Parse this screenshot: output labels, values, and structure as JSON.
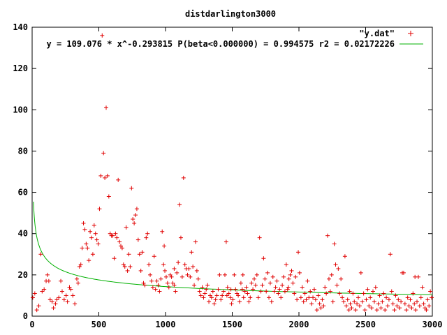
{
  "chart_data": {
    "type": "scatter",
    "title": "distdarlington3000",
    "xlabel": "",
    "ylabel": "",
    "xlim": [
      0,
      3000
    ],
    "ylim": [
      0,
      140
    ],
    "x_ticks": [
      0,
      500,
      1000,
      1500,
      2000,
      2500,
      3000
    ],
    "y_ticks": [
      0,
      20,
      40,
      60,
      80,
      100,
      120,
      140
    ],
    "grid": false,
    "legend_position": "top-right",
    "colors": {
      "scatter": "#e00000",
      "fit": "#00b000",
      "axis": "#000000"
    },
    "series": [
      {
        "name": "\"y.dat\"",
        "kind": "scatter",
        "marker": "+",
        "points": [
          [
            5,
            9
          ],
          [
            20,
            11
          ],
          [
            35,
            3
          ],
          [
            50,
            5
          ],
          [
            65,
            30
          ],
          [
            75,
            12
          ],
          [
            90,
            13
          ],
          [
            105,
            17
          ],
          [
            115,
            20
          ],
          [
            125,
            17
          ],
          [
            135,
            8
          ],
          [
            150,
            7
          ],
          [
            160,
            4
          ],
          [
            175,
            6
          ],
          [
            185,
            8
          ],
          [
            200,
            9
          ],
          [
            215,
            17
          ],
          [
            225,
            12
          ],
          [
            240,
            8
          ],
          [
            255,
            10
          ],
          [
            265,
            7
          ],
          [
            280,
            14
          ],
          [
            290,
            13
          ],
          [
            305,
            10
          ],
          [
            320,
            6
          ],
          [
            335,
            18
          ],
          [
            345,
            16
          ],
          [
            355,
            24
          ],
          [
            365,
            25
          ],
          [
            375,
            33
          ],
          [
            385,
            45
          ],
          [
            395,
            42
          ],
          [
            405,
            35
          ],
          [
            415,
            33
          ],
          [
            425,
            27
          ],
          [
            435,
            41
          ],
          [
            445,
            38
          ],
          [
            455,
            30
          ],
          [
            465,
            44
          ],
          [
            475,
            40
          ],
          [
            485,
            37
          ],
          [
            495,
            35
          ],
          [
            505,
            52
          ],
          [
            515,
            68
          ],
          [
            525,
            136
          ],
          [
            535,
            79
          ],
          [
            545,
            67
          ],
          [
            555,
            101
          ],
          [
            565,
            68
          ],
          [
            575,
            58
          ],
          [
            585,
            40
          ],
          [
            595,
            39
          ],
          [
            605,
            39
          ],
          [
            615,
            28
          ],
          [
            625,
            40
          ],
          [
            635,
            38
          ],
          [
            645,
            66
          ],
          [
            655,
            36
          ],
          [
            665,
            34
          ],
          [
            675,
            33
          ],
          [
            685,
            25
          ],
          [
            695,
            24
          ],
          [
            705,
            43
          ],
          [
            715,
            22
          ],
          [
            725,
            30
          ],
          [
            735,
            24
          ],
          [
            745,
            62
          ],
          [
            755,
            47
          ],
          [
            765,
            45
          ],
          [
            775,
            49
          ],
          [
            785,
            52
          ],
          [
            795,
            37
          ],
          [
            805,
            30
          ],
          [
            815,
            22
          ],
          [
            825,
            31
          ],
          [
            835,
            16
          ],
          [
            845,
            15
          ],
          [
            855,
            38
          ],
          [
            865,
            40
          ],
          [
            875,
            25
          ],
          [
            885,
            20
          ],
          [
            895,
            17
          ],
          [
            905,
            14
          ],
          [
            915,
            29
          ],
          [
            925,
            13
          ],
          [
            935,
            17
          ],
          [
            945,
            15
          ],
          [
            955,
            12
          ],
          [
            965,
            18
          ],
          [
            975,
            41
          ],
          [
            985,
            25
          ],
          [
            995,
            22
          ],
          [
            1005,
            19
          ],
          [
            1015,
            16
          ],
          [
            1025,
            14
          ],
          [
            1035,
            20
          ],
          [
            1045,
            19
          ],
          [
            1055,
            16
          ],
          [
            1065,
            23
          ],
          [
            1075,
            12
          ],
          [
            1085,
            21
          ],
          [
            1095,
            26
          ],
          [
            1105,
            54
          ],
          [
            1115,
            38
          ],
          [
            1125,
            19
          ],
          [
            1135,
            67
          ],
          [
            1145,
            25
          ],
          [
            1155,
            23
          ],
          [
            1165,
            20
          ],
          [
            1175,
            23
          ],
          [
            1185,
            19
          ],
          [
            1195,
            31
          ],
          [
            1205,
            24
          ],
          [
            1215,
            15
          ],
          [
            1225,
            36
          ],
          [
            1235,
            22
          ],
          [
            1245,
            18
          ],
          [
            1255,
            12
          ],
          [
            1265,
            10
          ],
          [
            1275,
            14
          ],
          [
            1285,
            9
          ],
          [
            1295,
            11
          ],
          [
            1305,
            13
          ],
          [
            1315,
            15
          ],
          [
            1325,
            7
          ],
          [
            1335,
            10
          ],
          [
            1345,
            9
          ],
          [
            1355,
            12
          ],
          [
            1365,
            6
          ],
          [
            1375,
            8
          ],
          [
            1385,
            10
          ],
          [
            1395,
            13
          ],
          [
            1405,
            20
          ],
          [
            1415,
            8
          ],
          [
            1425,
            10
          ],
          [
            1435,
            12
          ],
          [
            1445,
            20
          ],
          [
            1455,
            36
          ],
          [
            1465,
            14
          ],
          [
            1475,
            11
          ],
          [
            1485,
            9
          ],
          [
            1495,
            6
          ],
          [
            1505,
            8
          ],
          [
            1515,
            20
          ],
          [
            1525,
            13
          ],
          [
            1535,
            11
          ],
          [
            1545,
            10
          ],
          [
            1555,
            7
          ],
          [
            1565,
            16
          ],
          [
            1575,
            13
          ],
          [
            1585,
            9
          ],
          [
            1595,
            12
          ],
          [
            1605,
            14
          ],
          [
            1615,
            11
          ],
          [
            1625,
            7
          ],
          [
            1635,
            9
          ],
          [
            1645,
            16
          ],
          [
            1655,
            13
          ],
          [
            1665,
            18
          ],
          [
            1675,
            15
          ],
          [
            1685,
            20
          ],
          [
            1695,
            9
          ],
          [
            1705,
            38
          ],
          [
            1715,
            12
          ],
          [
            1725,
            15
          ],
          [
            1735,
            28
          ],
          [
            1745,
            18
          ],
          [
            1755,
            12
          ],
          [
            1765,
            21
          ],
          [
            1775,
            9
          ],
          [
            1785,
            16
          ],
          [
            1795,
            7
          ],
          [
            1805,
            19
          ],
          [
            1815,
            12
          ],
          [
            1825,
            14
          ],
          [
            1835,
            17
          ],
          [
            1845,
            11
          ],
          [
            1855,
            13
          ],
          [
            1865,
            9
          ],
          [
            1875,
            15
          ],
          [
            1885,
            19
          ],
          [
            1895,
            12
          ],
          [
            1905,
            25
          ],
          [
            1915,
            13
          ],
          [
            1925,
            18
          ],
          [
            1935,
            20
          ],
          [
            1945,
            22
          ],
          [
            1955,
            16
          ],
          [
            1965,
            11
          ],
          [
            1975,
            19
          ],
          [
            1985,
            8
          ],
          [
            1995,
            31
          ],
          [
            2005,
            21
          ],
          [
            2015,
            9
          ],
          [
            2025,
            14
          ],
          [
            2035,
            7
          ],
          [
            2045,
            11
          ],
          [
            2055,
            8
          ],
          [
            2065,
            17
          ],
          [
            2075,
            9
          ],
          [
            2085,
            12
          ],
          [
            2095,
            6
          ],
          [
            2105,
            9
          ],
          [
            2115,
            13
          ],
          [
            2125,
            8
          ],
          [
            2135,
            3
          ],
          [
            2145,
            10
          ],
          [
            2155,
            6
          ],
          [
            2165,
            4
          ],
          [
            2175,
            8
          ],
          [
            2185,
            5
          ],
          [
            2195,
            14
          ],
          [
            2205,
            11
          ],
          [
            2215,
            39
          ],
          [
            2225,
            18
          ],
          [
            2235,
            12
          ],
          [
            2245,
            20
          ],
          [
            2255,
            7
          ],
          [
            2265,
            35
          ],
          [
            2275,
            25
          ],
          [
            2285,
            15
          ],
          [
            2295,
            23
          ],
          [
            2305,
            11
          ],
          [
            2315,
            18
          ],
          [
            2325,
            9
          ],
          [
            2335,
            7
          ],
          [
            2345,
            29
          ],
          [
            2355,
            5
          ],
          [
            2365,
            8
          ],
          [
            2375,
            3
          ],
          [
            2385,
            6
          ],
          [
            2395,
            4
          ],
          [
            2405,
            11
          ],
          [
            2415,
            7
          ],
          [
            2425,
            3
          ],
          [
            2435,
            6
          ],
          [
            2445,
            9
          ],
          [
            2455,
            5
          ],
          [
            2465,
            21
          ],
          [
            2475,
            7
          ],
          [
            2485,
            11
          ],
          [
            2495,
            3
          ],
          [
            2505,
            8
          ],
          [
            2515,
            13
          ],
          [
            2525,
            5
          ],
          [
            2535,
            9
          ],
          [
            2545,
            4
          ],
          [
            2555,
            12
          ],
          [
            2565,
            7
          ],
          [
            2575,
            14
          ],
          [
            2585,
            3
          ],
          [
            2595,
            6
          ],
          [
            2605,
            10
          ],
          [
            2615,
            4
          ],
          [
            2625,
            7
          ],
          [
            2635,
            11
          ],
          [
            2645,
            3
          ],
          [
            2655,
            9
          ],
          [
            2665,
            5
          ],
          [
            2675,
            8
          ],
          [
            2685,
            30
          ],
          [
            2695,
            12
          ],
          [
            2705,
            6
          ],
          [
            2715,
            3
          ],
          [
            2725,
            10
          ],
          [
            2735,
            5
          ],
          [
            2745,
            8
          ],
          [
            2755,
            4
          ],
          [
            2765,
            7
          ],
          [
            2775,
            21
          ],
          [
            2785,
            21
          ],
          [
            2795,
            6
          ],
          [
            2805,
            3
          ],
          [
            2815,
            9
          ],
          [
            2825,
            5
          ],
          [
            2835,
            8
          ],
          [
            2845,
            4
          ],
          [
            2855,
            11
          ],
          [
            2865,
            6
          ],
          [
            2875,
            3
          ],
          [
            2885,
            7
          ],
          [
            2895,
            19
          ],
          [
            2905,
            5
          ],
          [
            2915,
            9
          ],
          [
            2925,
            14
          ],
          [
            2935,
            6
          ],
          [
            2945,
            4
          ],
          [
            2955,
            3
          ],
          [
            2965,
            8
          ],
          [
            2975,
            5
          ],
          [
            2985,
            12
          ],
          [
            2995,
            9
          ],
          [
            2870,
            19
          ],
          [
            2380,
            12
          ],
          [
            1460,
            10
          ],
          [
            1490,
            13
          ],
          [
            1920,
            14
          ],
          [
            1580,
            20
          ],
          [
            990,
            34
          ],
          [
            1065,
            15
          ]
        ]
      },
      {
        "name": "y = 109.076 * x^-0.293815 P(beta<0.000000) = 0.994575 r2 = 0.02172226",
        "kind": "line",
        "equation": {
          "a": 109.076,
          "b": -0.293815
        },
        "x_range": [
          10,
          3000
        ]
      }
    ]
  }
}
